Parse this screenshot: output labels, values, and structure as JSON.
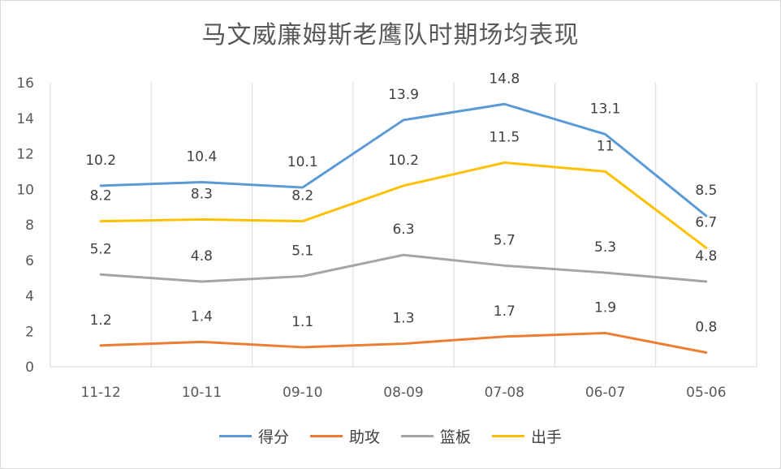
{
  "chart_data": {
    "type": "line",
    "title": "马文威廉姆斯老鹰队时期场均表现",
    "categories": [
      "11-12",
      "10-11",
      "09-10",
      "08-09",
      "07-08",
      "06-07",
      "05-06"
    ],
    "ylim": [
      0,
      16
    ],
    "yticks": [
      0,
      2,
      4,
      6,
      8,
      10,
      12,
      14,
      16
    ],
    "grid": "vertical",
    "legend_position": "bottom",
    "series": [
      {
        "name": "得分",
        "color": "#5b9bd5",
        "values": [
          10.2,
          10.4,
          10.1,
          13.9,
          14.8,
          13.1,
          8.5
        ]
      },
      {
        "name": "助攻",
        "color": "#ed7d31",
        "values": [
          1.2,
          1.4,
          1.1,
          1.3,
          1.7,
          1.9,
          0.8
        ]
      },
      {
        "name": "篮板",
        "color": "#a5a5a5",
        "values": [
          5.2,
          4.8,
          5.1,
          6.3,
          5.7,
          5.3,
          4.8
        ]
      },
      {
        "name": "出手",
        "color": "#ffc000",
        "values": [
          8.2,
          8.3,
          8.2,
          10.2,
          11.5,
          11,
          6.7
        ]
      }
    ]
  }
}
